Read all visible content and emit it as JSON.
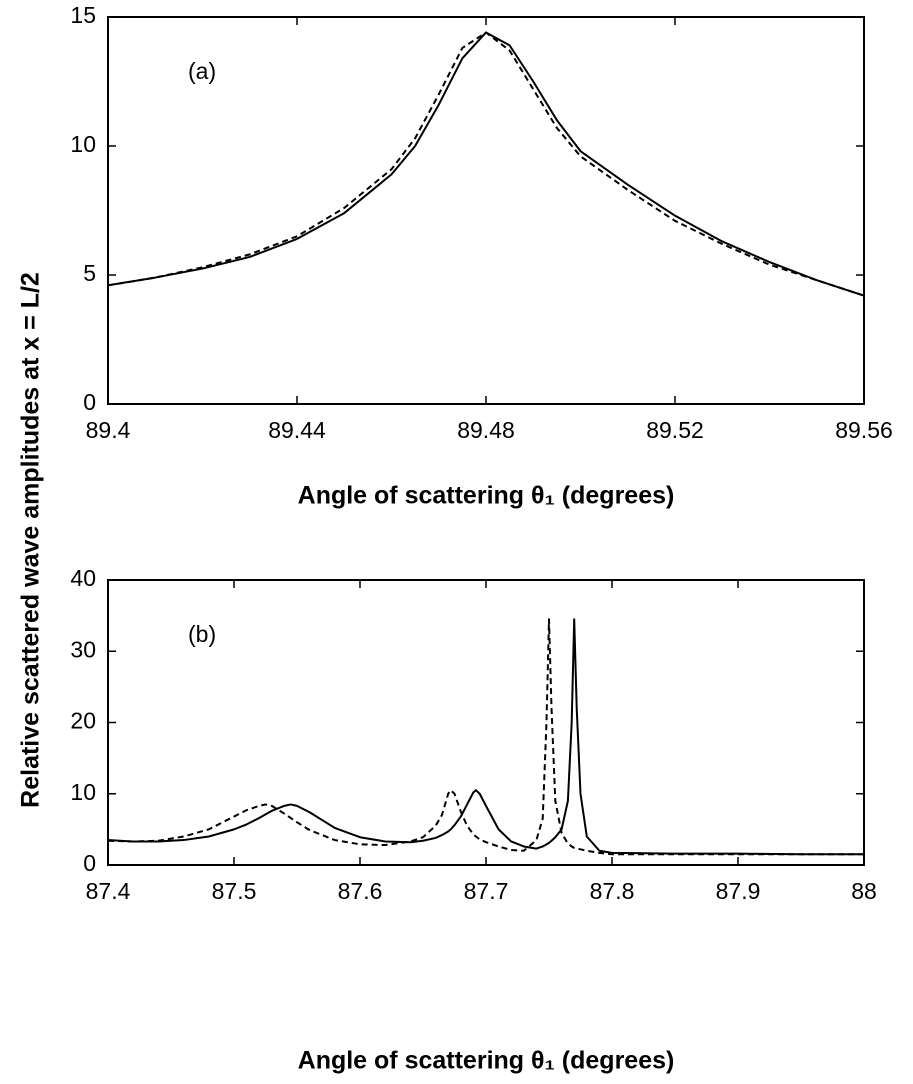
{
  "chart_data": [
    {
      "type": "line",
      "annotation": "(a)",
      "xlabel": "Angle of scattering θ₁ (degrees)",
      "ylabel": "Relative scattered wave amplitudes at x = L/2",
      "x": [
        89.4,
        89.41,
        89.42,
        89.43,
        89.44,
        89.45,
        89.46,
        89.465,
        89.47,
        89.475,
        89.48,
        89.485,
        89.49,
        89.495,
        89.5,
        89.51,
        89.52,
        89.53,
        89.54,
        89.55,
        89.56
      ],
      "series": [
        {
          "color": "#000000",
          "dashed": false,
          "values": [
            4.6,
            4.9,
            5.25,
            5.7,
            6.4,
            7.4,
            8.9,
            10.0,
            11.6,
            13.4,
            14.4,
            13.9,
            12.5,
            11.0,
            9.8,
            8.5,
            7.3,
            6.3,
            5.5,
            4.8,
            4.2
          ]
        },
        {
          "color": "#000000",
          "dashed": true,
          "values": [
            4.6,
            4.9,
            5.3,
            5.8,
            6.5,
            7.6,
            9.1,
            10.3,
            12.0,
            13.8,
            14.4,
            13.7,
            12.2,
            10.7,
            9.6,
            8.3,
            7.1,
            6.2,
            5.4,
            4.8,
            4.2
          ]
        }
      ],
      "xlim": [
        89.4,
        89.56
      ],
      "xticks": [
        89.4,
        89.44,
        89.48,
        89.52,
        89.56
      ],
      "ylim": [
        0,
        15
      ],
      "yticks": [
        0,
        5,
        10,
        15
      ]
    },
    {
      "type": "line",
      "annotation": "(b)",
      "xlabel": "Angle of scattering θ₁ (degrees)",
      "x": [
        87.4,
        87.42,
        87.44,
        87.46,
        87.48,
        87.5,
        87.51,
        87.52,
        87.525,
        87.53,
        87.54,
        87.545,
        87.55,
        87.56,
        87.58,
        87.6,
        87.62,
        87.64,
        87.65,
        87.66,
        87.665,
        87.67,
        87.672,
        87.675,
        87.68,
        87.685,
        87.69,
        87.692,
        87.695,
        87.7,
        87.71,
        87.72,
        87.73,
        87.74,
        87.745,
        87.748,
        87.75,
        87.752,
        87.755,
        87.76,
        87.765,
        87.768,
        87.77,
        87.772,
        87.775,
        87.78,
        87.79,
        87.8,
        87.85,
        87.9,
        87.95,
        88.0
      ],
      "series": [
        {
          "color": "#000000",
          "dashed": false,
          "values": [
            3.5,
            3.3,
            3.3,
            3.5,
            4.0,
            5.0,
            5.7,
            6.6,
            7.1,
            7.6,
            8.3,
            8.5,
            8.3,
            7.4,
            5.2,
            3.9,
            3.3,
            3.2,
            3.4,
            3.8,
            4.2,
            4.7,
            5.0,
            5.6,
            6.8,
            8.5,
            10.2,
            10.5,
            10.0,
            8.3,
            5.0,
            3.3,
            2.6,
            2.3,
            2.6,
            2.9,
            3.1,
            3.4,
            3.9,
            5.0,
            9.0,
            20.0,
            34.5,
            22.0,
            10.0,
            4.0,
            2.0,
            1.7,
            1.6,
            1.6,
            1.5,
            1.5
          ]
        },
        {
          "color": "#000000",
          "dashed": true,
          "values": [
            3.4,
            3.3,
            3.4,
            4.0,
            5.0,
            6.8,
            7.7,
            8.3,
            8.5,
            8.3,
            7.2,
            6.6,
            6.0,
            4.9,
            3.5,
            2.9,
            2.8,
            3.3,
            3.9,
            5.5,
            7.0,
            10.0,
            10.5,
            10.0,
            7.5,
            5.5,
            4.3,
            4.0,
            3.6,
            3.2,
            2.6,
            2.1,
            2.0,
            3.5,
            6.5,
            20.0,
            34.5,
            22.0,
            9.0,
            4.5,
            3.0,
            2.6,
            2.4,
            2.3,
            2.2,
            2.0,
            1.7,
            1.5,
            1.5,
            1.5,
            1.5,
            1.5
          ]
        }
      ],
      "xlim": [
        87.4,
        88
      ],
      "xticks": [
        87.4,
        87.5,
        87.6,
        87.7,
        87.8,
        87.9,
        88
      ],
      "ylim": [
        0,
        40
      ],
      "yticks": [
        0,
        10,
        20,
        30,
        40
      ]
    }
  ]
}
